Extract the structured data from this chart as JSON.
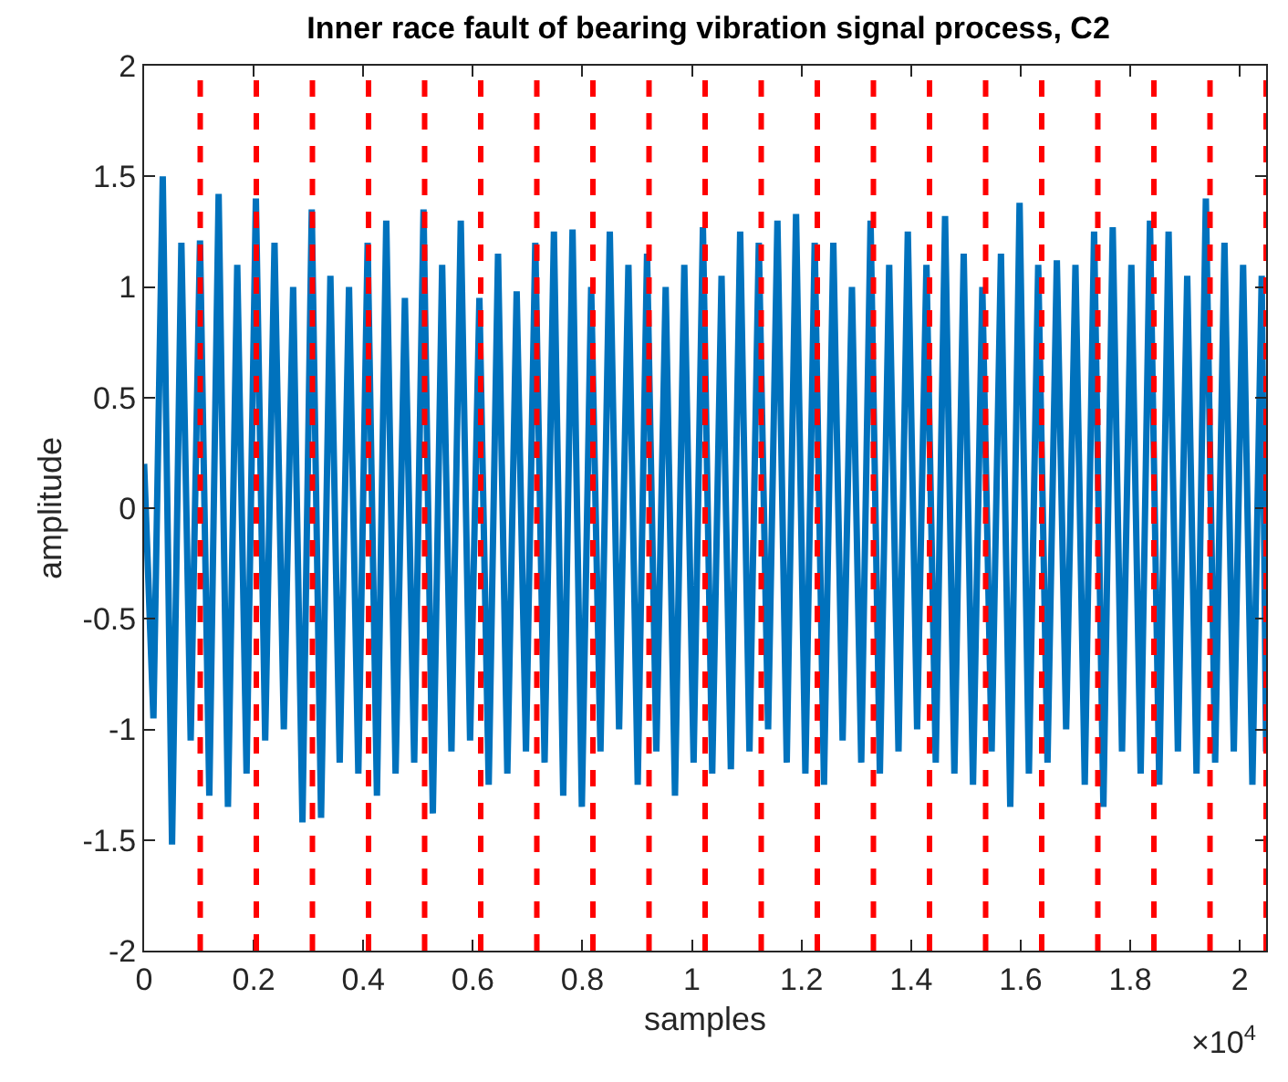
{
  "chart_data": {
    "type": "line",
    "title": "Inner race fault of bearing vibration signal process, C2",
    "xlabel": "samples",
    "ylabel": "amplitude",
    "annotations": [
      "×10$^{4}$"
    ],
    "xlim": [
      0,
      2.048
    ],
    "ylim": [
      -2,
      2
    ],
    "xticks": [
      0,
      0.2,
      0.4,
      0.6,
      0.8,
      1,
      1.2,
      1.4,
      1.6,
      1.8,
      2
    ],
    "yticks": [
      -2,
      -1.5,
      -1,
      -0.5,
      0,
      0.5,
      1,
      1.5,
      2
    ],
    "marker": "none",
    "line_style": "solid",
    "series": [
      {
        "color": "#0072bd",
        "x": [
          0,
          0.017,
          0.034,
          0.051,
          0.068,
          0.085,
          0.102,
          0.119,
          0.136,
          0.153,
          0.17,
          0.187,
          0.204,
          0.221,
          0.238,
          0.255,
          0.272,
          0.289,
          0.306,
          0.323,
          0.34,
          0.357,
          0.374,
          0.391,
          0.408,
          0.425,
          0.442,
          0.459,
          0.476,
          0.493,
          0.51,
          0.527,
          0.544,
          0.561,
          0.578,
          0.595,
          0.612,
          0.629,
          0.646,
          0.663,
          0.68,
          0.697,
          0.714,
          0.731,
          0.748,
          0.765,
          0.782,
          0.799,
          0.816,
          0.833,
          0.85,
          0.867,
          0.884,
          0.901,
          0.918,
          0.935,
          0.952,
          0.969,
          0.986,
          1.003,
          1.02,
          1.037,
          1.054,
          1.071,
          1.088,
          1.105,
          1.122,
          1.139,
          1.156,
          1.173,
          1.19,
          1.207,
          1.224,
          1.241,
          1.258,
          1.275,
          1.292,
          1.309,
          1.326,
          1.343,
          1.36,
          1.377,
          1.394,
          1.411,
          1.428,
          1.445,
          1.462,
          1.479,
          1.496,
          1.513,
          1.53,
          1.547,
          1.564,
          1.581,
          1.598,
          1.615,
          1.632,
          1.649,
          1.666,
          1.683,
          1.7,
          1.717,
          1.734,
          1.751,
          1.768,
          1.785,
          1.802,
          1.819,
          1.836,
          1.853,
          1.87,
          1.887,
          1.904,
          1.921,
          1.938,
          1.955,
          1.972,
          1.989,
          2.006,
          2.023,
          2.04,
          2.048
        ],
        "values": [
          0.2,
          -0.95,
          1.5,
          -1.52,
          1.2,
          -1.05,
          1.21,
          -1.3,
          1.42,
          -1.35,
          1.1,
          -1.2,
          1.4,
          -1.05,
          1.2,
          -1.0,
          1.0,
          -1.42,
          1.35,
          -1.4,
          1.05,
          -1.15,
          1.0,
          -1.2,
          1.2,
          -1.3,
          1.3,
          -1.2,
          0.95,
          -1.15,
          1.35,
          -1.38,
          1.1,
          -1.1,
          1.3,
          -1.05,
          0.95,
          -1.25,
          1.15,
          -1.2,
          0.98,
          -1.1,
          1.2,
          -1.15,
          1.25,
          -1.3,
          1.26,
          -1.35,
          1.0,
          -1.1,
          1.25,
          -1.0,
          1.1,
          -1.25,
          1.15,
          -1.1,
          1.0,
          -1.3,
          1.1,
          -1.15,
          1.27,
          -1.2,
          1.05,
          -1.18,
          1.25,
          -1.1,
          1.2,
          -1.0,
          1.3,
          -1.15,
          1.33,
          -1.2,
          1.2,
          -1.25,
          1.2,
          -1.05,
          1.0,
          -1.15,
          1.3,
          -1.2,
          1.1,
          -1.1,
          1.25,
          -1.0,
          1.1,
          -1.15,
          1.32,
          -1.2,
          1.15,
          -1.25,
          1.0,
          -1.1,
          1.15,
          -1.35,
          1.38,
          -1.2,
          1.1,
          -1.15,
          1.12,
          -1.0,
          1.1,
          -1.25,
          1.25,
          -1.35,
          1.27,
          -1.1,
          1.1,
          -1.2,
          1.3,
          -1.25,
          1.25,
          -1.1,
          1.05,
          -1.2,
          1.4,
          -1.15,
          1.2,
          -1.1,
          1.1,
          -1.25,
          1.05,
          -1.1
        ]
      }
    ],
    "ref_lines": [
      {
        "axis": "x",
        "value": 0.1024,
        "color": "#ff0000",
        "line_style": "dashed"
      },
      {
        "axis": "x",
        "value": 0.2048,
        "color": "#ff0000",
        "line_style": "dashed"
      },
      {
        "axis": "x",
        "value": 0.3072,
        "color": "#ff0000",
        "line_style": "dashed"
      },
      {
        "axis": "x",
        "value": 0.4096,
        "color": "#ff0000",
        "line_style": "dashed"
      },
      {
        "axis": "x",
        "value": 0.512,
        "color": "#ff0000",
        "line_style": "dashed"
      },
      {
        "axis": "x",
        "value": 0.6144,
        "color": "#ff0000",
        "line_style": "dashed"
      },
      {
        "axis": "x",
        "value": 0.7168,
        "color": "#ff0000",
        "line_style": "dashed"
      },
      {
        "axis": "x",
        "value": 0.8192,
        "color": "#ff0000",
        "line_style": "dashed"
      },
      {
        "axis": "x",
        "value": 0.9216,
        "color": "#ff0000",
        "line_style": "dashed"
      },
      {
        "axis": "x",
        "value": 1.024,
        "color": "#ff0000",
        "line_style": "dashed"
      },
      {
        "axis": "x",
        "value": 1.1264,
        "color": "#ff0000",
        "line_style": "dashed"
      },
      {
        "axis": "x",
        "value": 1.2288,
        "color": "#ff0000",
        "line_style": "dashed"
      },
      {
        "axis": "x",
        "value": 1.3312,
        "color": "#ff0000",
        "line_style": "dashed"
      },
      {
        "axis": "x",
        "value": 1.4336,
        "color": "#ff0000",
        "line_style": "dashed"
      },
      {
        "axis": "x",
        "value": 1.536,
        "color": "#ff0000",
        "line_style": "dashed"
      },
      {
        "axis": "x",
        "value": 1.6384,
        "color": "#ff0000",
        "line_style": "dashed"
      },
      {
        "axis": "x",
        "value": 1.7408,
        "color": "#ff0000",
        "line_style": "dashed"
      },
      {
        "axis": "x",
        "value": 1.8432,
        "color": "#ff0000",
        "line_style": "dashed"
      },
      {
        "axis": "x",
        "value": 1.9456,
        "color": "#ff0000",
        "line_style": "dashed"
      },
      {
        "axis": "x",
        "value": 2.048,
        "color": "#ff0000",
        "line_style": "dashed"
      }
    ]
  }
}
